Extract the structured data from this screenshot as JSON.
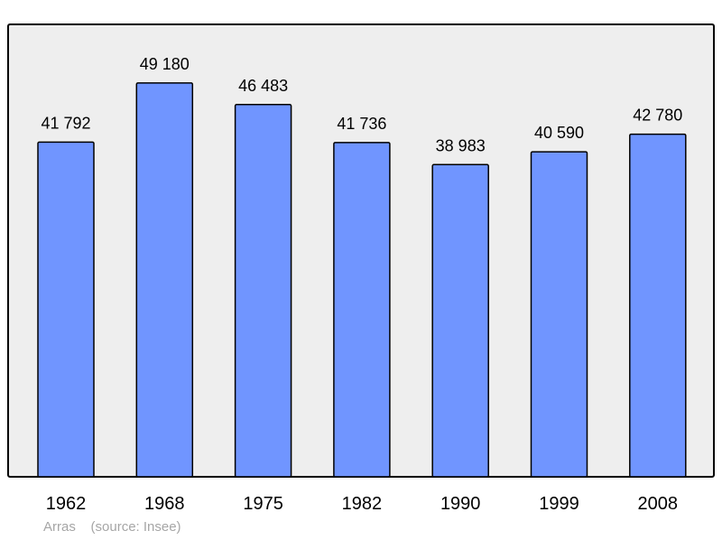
{
  "chart_data": {
    "type": "bar",
    "categories": [
      "1962",
      "1968",
      "1975",
      "1982",
      "1990",
      "1999",
      "2008"
    ],
    "values": [
      41792,
      49180,
      46483,
      41736,
      38983,
      40590,
      42780
    ],
    "value_labels": [
      "41 792",
      "49 180",
      "46 483",
      "41 736",
      "38 983",
      "40 590",
      "42 780"
    ],
    "ylim": [
      0,
      53000
    ],
    "grid": false,
    "legend": "none"
  },
  "caption": {
    "place": "Arras",
    "source": "(source: Insee)"
  },
  "colors": {
    "plot_background": "#eeeeee",
    "bar_fill": "#7095ff",
    "bar_stroke": "#000000",
    "frame": "#000000",
    "caption_text": "#a6a6a6"
  }
}
